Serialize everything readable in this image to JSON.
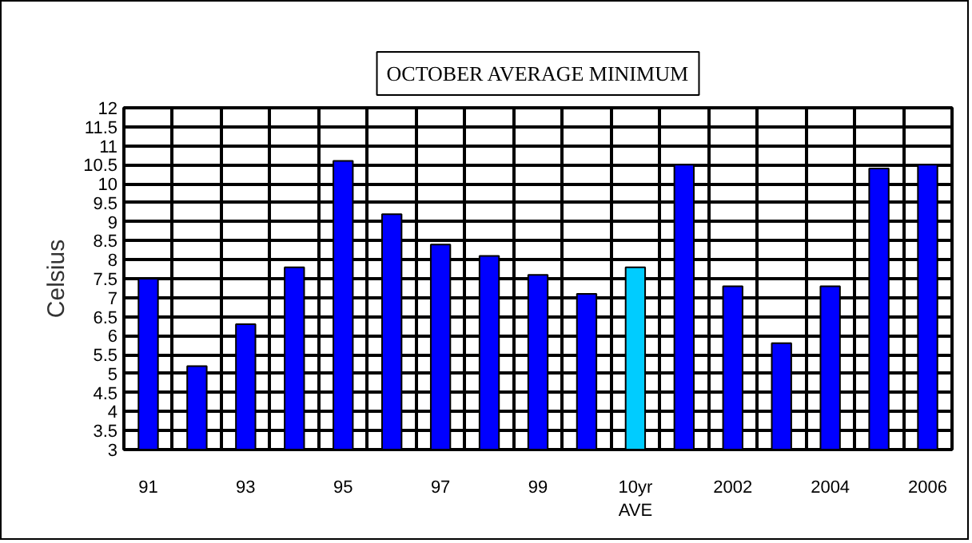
{
  "chart_data": {
    "type": "bar",
    "title": "OCTOBER AVERAGE MINIMUM",
    "ylabel": "Celsius",
    "categories": [
      "91",
      null,
      "93",
      null,
      "95",
      null,
      "97",
      null,
      "99",
      null,
      "10yr\nAVE",
      null,
      "2002",
      null,
      "2004",
      null,
      "2006"
    ],
    "values": [
      7.5,
      5.2,
      6.3,
      7.8,
      10.6,
      9.2,
      8.4,
      8.1,
      7.6,
      7.1,
      7.8,
      10.5,
      7.3,
      5.8,
      7.3,
      10.4,
      10.5
    ],
    "colors": [
      "#0000ff",
      "#0000ff",
      "#0000ff",
      "#0000ff",
      "#0000ff",
      "#0000ff",
      "#0000ff",
      "#0000ff",
      "#0000ff",
      "#0000ff",
      "#00ccff",
      "#0000ff",
      "#0000ff",
      "#0000ff",
      "#0000ff",
      "#0000ff",
      "#0000ff"
    ],
    "ylim": [
      3,
      12
    ],
    "yticks": [
      3,
      3.5,
      4,
      4.5,
      5,
      5.5,
      6,
      6.5,
      7,
      7.5,
      8,
      8.5,
      9,
      9.5,
      10,
      10.5,
      11,
      11.5,
      12
    ],
    "grid": true
  }
}
